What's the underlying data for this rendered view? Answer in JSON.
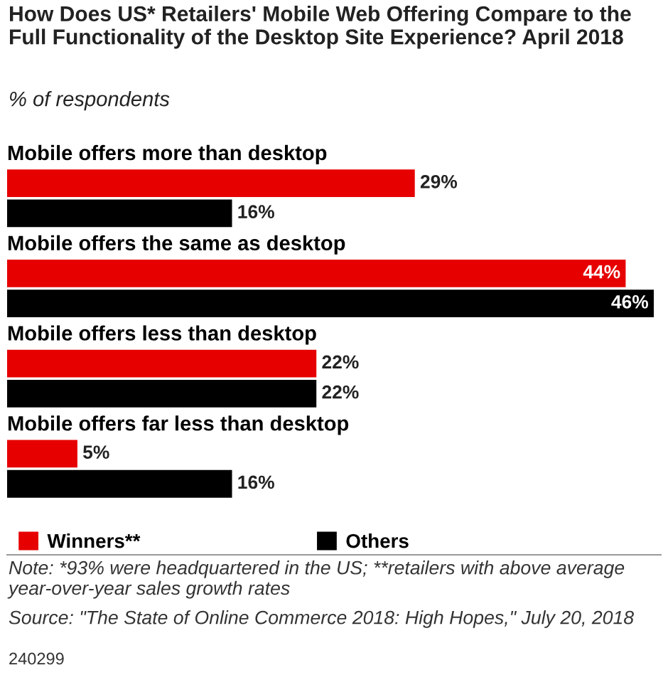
{
  "chart_data": {
    "type": "bar",
    "orientation": "horizontal",
    "title": "How Does US* Retailers' Mobile Web Offering Compare to the Full Functionality of the Desktop Site Experience? April 2018",
    "subtitle": "% of respondents",
    "categories": [
      "Mobile offers more than desktop",
      "Mobile offers the same as desktop",
      "Mobile offers less than desktop",
      "Mobile offers far less than desktop"
    ],
    "series": [
      {
        "name": "Winners**",
        "color": "#e60000",
        "values": [
          29,
          44,
          22,
          5
        ],
        "value_labels": [
          "29%",
          "44%",
          "22%",
          "5%"
        ]
      },
      {
        "name": "Others",
        "color": "#000000",
        "values": [
          16,
          46,
          22,
          16
        ],
        "value_labels": [
          "16%",
          "46%",
          "22%",
          "16%"
        ]
      }
    ],
    "legend": "bottom left",
    "annotations": [
      "Note: *93% were headquartered in the US; **retailers with above average year-over-year sales growth rates",
      "Source: \"The State of Online Commerce 2018: High Hopes,\" July 20, 2018",
      "240299"
    ]
  }
}
